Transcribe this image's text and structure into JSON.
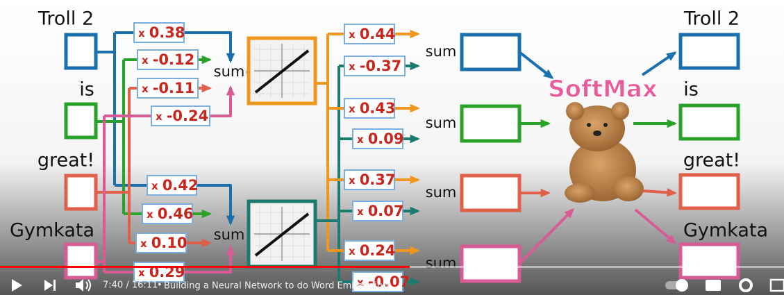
{
  "inputs": [
    "Troll 2",
    "is",
    "great!",
    "Gymkata"
  ],
  "weight_sign": "x",
  "sum_label": "sum",
  "layer1": {
    "top_weights": [
      "0.38",
      "-0.12",
      "-0.11",
      "-0.24"
    ],
    "bottom_weights": [
      "0.42",
      "0.46",
      "0.10",
      "0.29"
    ]
  },
  "layer2": {
    "weights": [
      "0.44",
      "-0.37",
      "0.43",
      "0.09",
      "0.37",
      "0.07",
      "0.24",
      "-0.07"
    ]
  },
  "softmax_label": "SoftMax",
  "outputs": [
    "Troll 2",
    "is",
    "great!",
    "Gymkata"
  ],
  "player": {
    "time": "7:40 / 16:11",
    "separator": "•",
    "video_title": "Building a Neural Network to do Word Embedding",
    "chapter_arrow": "›"
  }
}
